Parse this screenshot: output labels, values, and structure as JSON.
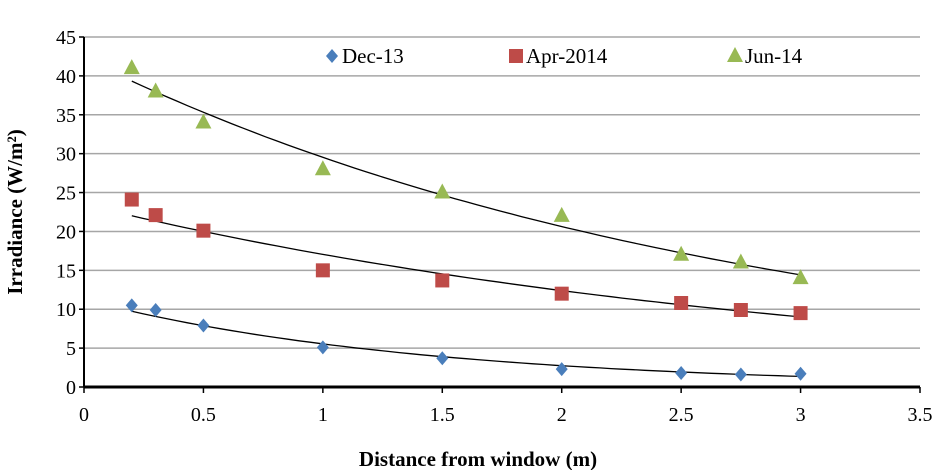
{
  "chart_data": {
    "type": "scatter",
    "title": "",
    "xlabel": "Distance from window (m)",
    "ylabel": "Irradiance (W/m²)",
    "xlim": [
      0,
      3.5
    ],
    "ylim": [
      0,
      45
    ],
    "xticks": [
      "0",
      "0.5",
      "1",
      "1.5",
      "2",
      "2.5",
      "3",
      "3.5"
    ],
    "yticks": [
      "0",
      "5",
      "10",
      "15",
      "20",
      "25",
      "30",
      "35",
      "40",
      "45"
    ],
    "grid": "horizontal",
    "legend_position": "top",
    "trendline": "exponential",
    "x": [
      0.2,
      0.3,
      0.5,
      1,
      1.5,
      2,
      2.5,
      2.75,
      3
    ],
    "series": [
      {
        "name": "Dec-13",
        "marker": "diamond",
        "color": "#4a7ebb",
        "values": [
          10.5,
          9.9,
          7.9,
          5.1,
          3.7,
          2.3,
          1.8,
          1.6,
          1.7
        ]
      },
      {
        "name": "Apr-2014",
        "marker": "square",
        "color": "#be4b48",
        "values": [
          24.1,
          22.1,
          20.1,
          15.0,
          13.7,
          12.0,
          10.8,
          9.9,
          9.5
        ]
      },
      {
        "name": "Jun-14",
        "marker": "triangle",
        "color": "#98b954",
        "values": [
          41,
          38,
          34,
          28,
          25,
          22,
          17,
          16,
          14
        ]
      }
    ]
  }
}
